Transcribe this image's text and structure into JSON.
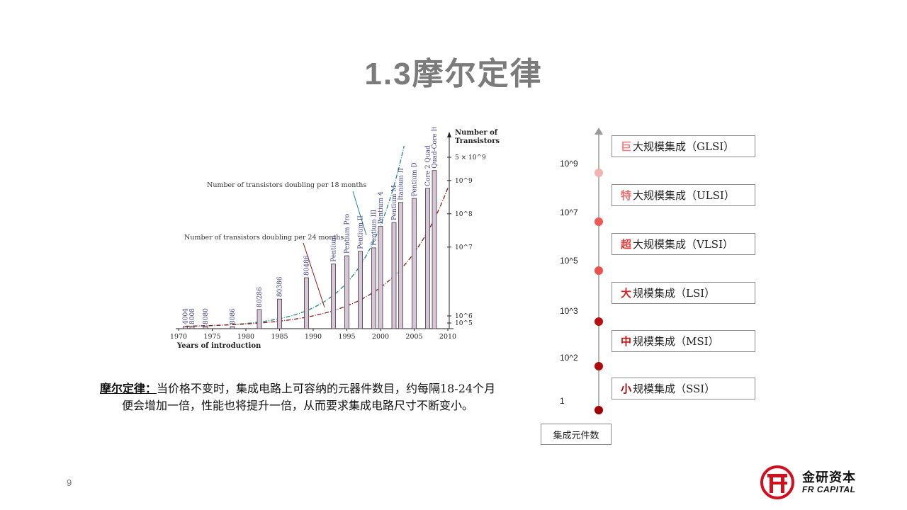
{
  "slide": {
    "title": "1.3摩尔定律",
    "page_number": "9"
  },
  "chart_data": {
    "type": "bar",
    "xlabel": "Years of introduction",
    "ylabel": "Number of Transistors",
    "x_ticks": [
      "1970",
      "1975",
      "1980",
      "1985",
      "1990",
      "1995",
      "2000",
      "2005",
      "2010"
    ],
    "y_ticks": [
      "10^5",
      "10^6",
      "10^7",
      "10^8",
      "10^9",
      "5 × 10^9"
    ],
    "xlim": [
      1970,
      2010
    ],
    "y_scale": "log",
    "bars": [
      {
        "label": "4004",
        "year": 1971,
        "transistors": 2300
      },
      {
        "label": "8008",
        "year": 1972,
        "transistors": 3500
      },
      {
        "label": "8080",
        "year": 1974,
        "transistors": 6000
      },
      {
        "label": "8086",
        "year": 1978,
        "transistors": 29000
      },
      {
        "label": "80286",
        "year": 1982,
        "transistors": 134000
      },
      {
        "label": "80386",
        "year": 1985,
        "transistors": 275000
      },
      {
        "label": "80486",
        "year": 1989,
        "transistors": 1200000
      },
      {
        "label": "Pentium",
        "year": 1993,
        "transistors": 3100000
      },
      {
        "label": "Pentium Pro",
        "year": 1995,
        "transistors": 5500000
      },
      {
        "label": "Pentium II",
        "year": 1997,
        "transistors": 7500000
      },
      {
        "label": "Pentium III",
        "year": 1999,
        "transistors": 9500000
      },
      {
        "label": "Pentium 4",
        "year": 2000,
        "transistors": 42000000
      },
      {
        "label": "Pentium M",
        "year": 2002,
        "transistors": 55000000
      },
      {
        "label": "Itanium II",
        "year": 2003,
        "transistors": 220000000
      },
      {
        "label": "Pentium D",
        "year": 2005,
        "transistors": 290000000
      },
      {
        "label": "Core 2 Quad",
        "year": 2007,
        "transistors": 580000000
      },
      {
        "label": "Quad-Core Itanium",
        "year": 2008,
        "transistors": 2000000000
      }
    ],
    "series": [
      {
        "name": "Number of transistors doubling per 18 months",
        "style": "dash-dot",
        "color": "#1b8a84",
        "doubling_months": 18
      },
      {
        "name": "Number of transistors doubling per 24 months",
        "style": "dash-dot",
        "color": "#8b1a1a",
        "doubling_months": 24
      }
    ],
    "annotations": [
      "Number of transistors doubling per 18 months",
      "Number of transistors doubling per 24 months"
    ],
    "colors": {
      "bar_fill": "#d8c6d8",
      "bar_stroke": "#3a3a3a"
    },
    "grid": false
  },
  "moore_law": {
    "term": "摩尔定律：",
    "text": "当价格不变时，集成电路上可容纳的元器件数目，约每隔18-24个月便会增加一倍，性能也将提升一倍，从而要求集成电路尺寸不断变小。"
  },
  "integration_scale": {
    "axis_caption": "集成元件数",
    "ticks": [
      "10^9",
      "10^7",
      "10^5",
      "10^3",
      "10^2",
      "1"
    ],
    "levels": [
      {
        "prefix": "巨",
        "rest": "大规模集成（GLSI）",
        "color": "#f08080"
      },
      {
        "prefix": "特",
        "rest": "大规模集成（ULSI）",
        "color": "#ee6a6a"
      },
      {
        "prefix": "超",
        "rest": "大规模集成（VLSI）",
        "color": "#e83a3a"
      },
      {
        "prefix": "大",
        "rest": "规模集成（LSI）",
        "color": "#d62424"
      },
      {
        "prefix": "中",
        "rest": "规模集成（MSI）",
        "color": "#c01414"
      },
      {
        "prefix": "小",
        "rest": "规模集成（SSI）",
        "color": "#a80a0a"
      }
    ],
    "dot_colors": [
      "#f2b3b3",
      "#ee5a5a",
      "#ea5050",
      "#b81010",
      "#b00a0a",
      "#a50000"
    ]
  },
  "logo": {
    "cn": "金研资本",
    "en": "FR CAPITAL",
    "color": "#d10f1e"
  }
}
